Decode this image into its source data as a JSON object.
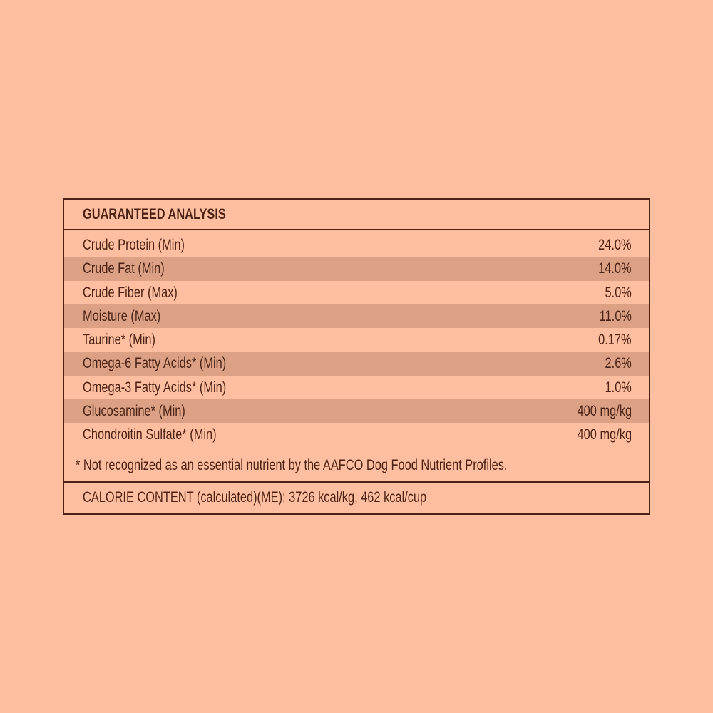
{
  "title": "GUARANTEED ANALYSIS",
  "rows": [
    {
      "label": "Crude Protein (Min)",
      "value": "24.0%"
    },
    {
      "label": "Crude Fat (Min)",
      "value": "14.0%"
    },
    {
      "label": "Crude Fiber (Max)",
      "value": "5.0%"
    },
    {
      "label": "Moisture (Max)",
      "value": "11.0%"
    },
    {
      "label": "Taurine* (Min)",
      "value": "0.17%"
    },
    {
      "label": "Omega-6 Fatty Acids* (Min)",
      "value": "2.6%"
    },
    {
      "label": "Omega-3 Fatty Acids* (Min)",
      "value": "1.0%"
    },
    {
      "label": "Glucosamine* (Min)",
      "value": "400 mg/kg"
    },
    {
      "label": "Chondroitin Sulfate* (Min)",
      "value": "400 mg/kg"
    }
  ],
  "footnote": "* Not recognized as an essential nutrient by the AAFCO Dog Food Nutrient Profiles.",
  "calorie_content": "CALORIE CONTENT (calculated)(ME): 3726 kcal/kg, 462 kcal/cup",
  "colors": {
    "background": "#FFBE9F",
    "stripe": "#DCA184",
    "text": "#4A2316"
  }
}
